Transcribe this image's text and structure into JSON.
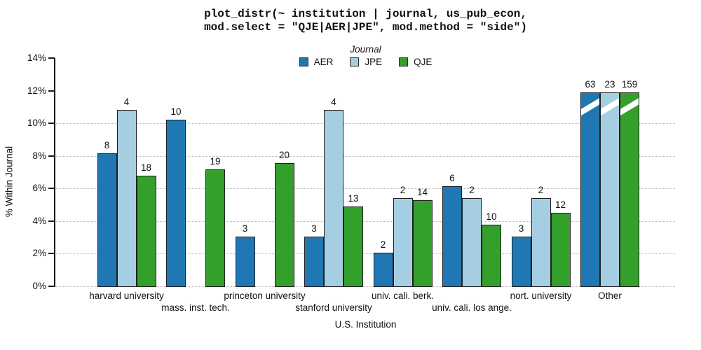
{
  "title": {
    "line1": "plot_distr(~ institution | journal, us_pub_econ,",
    "line2": "mod.select = \"QJE|AER|JPE\", mod.method = \"side\")"
  },
  "legend": {
    "title": "Journal"
  },
  "axes": {
    "y_label": "% Within Journal",
    "x_label": "U.S. Institution",
    "y_ticks": [
      {
        "label": "0%",
        "pct": 0
      },
      {
        "label": "2%",
        "pct": 2
      },
      {
        "label": "4%",
        "pct": 4
      },
      {
        "label": "6%",
        "pct": 6
      },
      {
        "label": "8%",
        "pct": 8
      },
      {
        "label": "10%",
        "pct": 10
      },
      {
        "label": "12%",
        "pct": 12
      },
      {
        "label": "14%",
        "pct": 14
      }
    ],
    "gridlines_pct": [
      0,
      2,
      4,
      6,
      8,
      10
    ]
  },
  "colors": {
    "aer": "#1F78B4",
    "jpe": "#A6CEE3",
    "qje": "#33A02C",
    "bar_border": "#1f1f1f",
    "grid": "#b8b8b8"
  },
  "chart_data": {
    "type": "bar",
    "title": "plot_distr(~ institution | journal, us_pub_econ, mod.select = \"QJE|AER|JPE\", mod.method = \"side\")",
    "xlabel": "U.S. Institution",
    "ylabel": "% Within Journal",
    "ylim": [
      0,
      14
    ],
    "grid": "horizontal dotted at 0-10%",
    "legend_position": "top-center",
    "legend_title": "Journal",
    "categories": [
      "harvard university",
      "mass. inst. tech.",
      "princeton university",
      "stanford university",
      "univ. cali. berk.",
      "univ. cali. los ange.",
      "nort. university",
      "Other"
    ],
    "label_rows": [
      1,
      2,
      1,
      2,
      1,
      2,
      1,
      1
    ],
    "series": [
      {
        "name": "AER",
        "color": "#1F78B4",
        "counts": [
          8,
          10,
          3,
          3,
          2,
          6,
          3,
          63
        ],
        "pct_height": [
          8.16,
          10.2,
          3.06,
          3.06,
          2.04,
          6.12,
          3.06,
          11.9
        ]
      },
      {
        "name": "JPE",
        "color": "#A6CEE3",
        "counts": [
          4,
          null,
          null,
          4,
          2,
          2,
          2,
          23
        ],
        "pct_height": [
          10.81,
          null,
          null,
          10.81,
          5.41,
          5.41,
          5.41,
          11.9
        ]
      },
      {
        "name": "QJE",
        "color": "#33A02C",
        "counts": [
          18,
          19,
          20,
          13,
          14,
          10,
          12,
          159
        ],
        "pct_height": [
          6.79,
          7.17,
          7.55,
          4.91,
          5.28,
          3.77,
          4.53,
          11.9
        ]
      }
    ],
    "truncated_category": "Other",
    "truncated_note": "Other bars are cut (white diagonal slash); labels show true counts 63, 23, 159"
  }
}
